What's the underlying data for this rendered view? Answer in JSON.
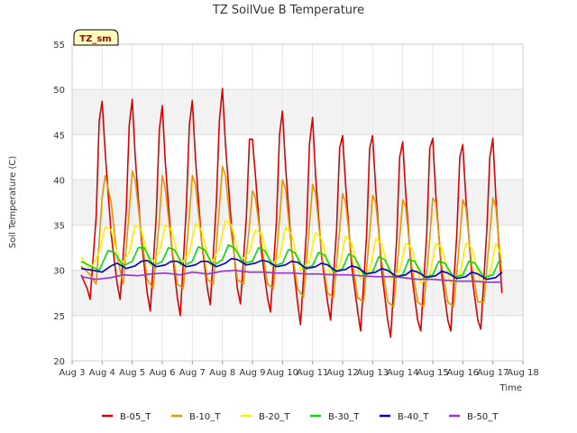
{
  "chart_data": {
    "type": "line",
    "title": "TZ SoilVue B Temperature",
    "xlabel": "Time",
    "ylabel": "Soil Temperature (C)",
    "ylim": [
      20,
      55
    ],
    "xlim": [
      3,
      18
    ],
    "yticks": [
      20,
      25,
      30,
      35,
      40,
      45,
      50,
      55
    ],
    "xticks": [
      3,
      4,
      5,
      6,
      7,
      8,
      9,
      10,
      11,
      12,
      13,
      14,
      15,
      16,
      17,
      18
    ],
    "xtick_labels": [
      "Aug 3",
      "Aug 4",
      "Aug 5",
      "Aug 6",
      "Aug 7",
      "Aug 8",
      "Aug 9",
      "Aug 10",
      "Aug 11",
      "Aug 12",
      "Aug 13",
      "Aug 14",
      "Aug 15",
      "Aug 16",
      "Aug 17",
      "Aug 18"
    ],
    "grid": true,
    "legend_position": "bottom",
    "annotation": "TZ_sm",
    "series": [
      {
        "name": "B-05_T",
        "color": "#dd0000",
        "x": [
          3.3,
          3.5,
          3.6,
          3.8,
          3.9,
          4.0,
          4.1,
          4.3,
          4.5,
          4.6,
          4.8,
          4.9,
          5.0,
          5.1,
          5.3,
          5.5,
          5.6,
          5.8,
          5.9,
          6.0,
          6.1,
          6.3,
          6.5,
          6.6,
          6.8,
          6.9,
          7.0,
          7.1,
          7.3,
          7.5,
          7.6,
          7.8,
          7.9,
          8.0,
          8.1,
          8.3,
          8.5,
          8.6,
          8.8,
          8.9,
          9.0,
          9.1,
          9.3,
          9.5,
          9.6,
          9.8,
          9.9,
          10.0,
          10.1,
          10.3,
          10.5,
          10.6,
          10.8,
          10.9,
          11.0,
          11.1,
          11.3,
          11.5,
          11.6,
          11.8,
          11.9,
          12.0,
          12.1,
          12.3,
          12.5,
          12.6,
          12.8,
          12.9,
          13.0,
          13.1,
          13.3,
          13.5,
          13.6,
          13.8,
          13.9,
          14.0,
          14.1,
          14.3,
          14.5,
          14.6,
          14.8,
          14.9,
          15.0,
          15.1,
          15.3,
          15.5,
          15.6,
          15.8,
          15.9,
          16.0,
          16.1,
          16.3,
          16.5,
          16.6,
          16.8,
          16.9,
          17.0,
          17.1,
          17.3
        ],
        "values": [
          29.5,
          28.0,
          26.8,
          36.0,
          46.5,
          48.7,
          43.0,
          34.0,
          28.5,
          26.8,
          36.5,
          46.0,
          48.9,
          42.5,
          33.5,
          27.5,
          25.5,
          36.0,
          45.5,
          48.2,
          42.0,
          33.0,
          27.0,
          25.0,
          37.0,
          46.0,
          48.8,
          42.5,
          33.5,
          28.0,
          26.2,
          37.5,
          46.5,
          50.1,
          44.0,
          35.0,
          28.0,
          26.3,
          36.0,
          44.5,
          44.5,
          40.5,
          32.0,
          27.0,
          25.4,
          35.5,
          45.0,
          47.6,
          41.5,
          32.5,
          26.5,
          24.0,
          34.5,
          44.0,
          46.9,
          40.5,
          31.5,
          26.5,
          24.5,
          34.5,
          43.5,
          44.9,
          39.5,
          30.5,
          25.5,
          23.3,
          34.0,
          43.5,
          44.9,
          39.0,
          30.0,
          24.5,
          22.6,
          33.5,
          42.5,
          44.2,
          38.5,
          29.5,
          24.5,
          23.3,
          34.0,
          43.5,
          44.6,
          38.5,
          29.5,
          24.5,
          23.3,
          34.0,
          42.5,
          43.9,
          38.0,
          29.5,
          24.5,
          23.5,
          34.5,
          42.5,
          44.6,
          38.0,
          27.5
        ]
      },
      {
        "name": "B-10_T",
        "color": "#e69500",
        "x": [
          3.3,
          3.6,
          3.8,
          4.0,
          4.1,
          4.3,
          4.5,
          4.7,
          4.9,
          5.0,
          5.1,
          5.3,
          5.5,
          5.7,
          5.9,
          6.0,
          6.1,
          6.3,
          6.5,
          6.7,
          6.9,
          7.0,
          7.1,
          7.3,
          7.5,
          7.7,
          7.9,
          8.0,
          8.1,
          8.3,
          8.5,
          8.7,
          8.9,
          9.0,
          9.1,
          9.3,
          9.5,
          9.7,
          9.9,
          10.0,
          10.1,
          10.3,
          10.5,
          10.7,
          10.9,
          11.0,
          11.1,
          11.3,
          11.5,
          11.7,
          11.9,
          12.0,
          12.1,
          12.3,
          12.5,
          12.7,
          12.9,
          13.0,
          13.1,
          13.3,
          13.5,
          13.7,
          13.9,
          14.0,
          14.1,
          14.3,
          14.5,
          14.7,
          14.9,
          15.0,
          15.1,
          15.3,
          15.5,
          15.7,
          15.9,
          16.0,
          16.1,
          16.3,
          16.5,
          16.7,
          16.9,
          17.0,
          17.1,
          17.3
        ],
        "values": [
          30.5,
          29.5,
          28.5,
          38.0,
          40.5,
          37.5,
          31.5,
          28.5,
          36.5,
          41.0,
          40.0,
          34.0,
          29.0,
          28.0,
          35.5,
          40.5,
          39.0,
          33.0,
          28.5,
          28.0,
          36.0,
          40.5,
          39.5,
          33.5,
          29.0,
          28.5,
          37.0,
          41.5,
          40.5,
          34.0,
          29.0,
          28.5,
          35.0,
          38.8,
          38.0,
          33.0,
          28.5,
          28.0,
          35.5,
          40.0,
          39.0,
          32.5,
          28.0,
          27.0,
          35.0,
          39.5,
          38.5,
          32.0,
          27.5,
          27.0,
          34.5,
          38.5,
          37.5,
          31.5,
          27.0,
          26.5,
          34.0,
          38.3,
          37.5,
          31.0,
          26.5,
          26.0,
          33.5,
          37.8,
          37.0,
          30.5,
          26.5,
          26.0,
          33.5,
          38.0,
          37.5,
          30.5,
          26.5,
          26.0,
          33.5,
          37.8,
          37.0,
          30.5,
          26.5,
          26.5,
          34.0,
          38.0,
          37.0,
          29.5
        ]
      },
      {
        "name": "B-20_T",
        "color": "#ffee00",
        "x": [
          3.3,
          3.6,
          3.9,
          4.1,
          4.3,
          4.6,
          4.9,
          5.1,
          5.3,
          5.6,
          5.9,
          6.1,
          6.3,
          6.6,
          6.9,
          7.1,
          7.3,
          7.6,
          7.9,
          8.1,
          8.3,
          8.6,
          8.9,
          9.1,
          9.3,
          9.6,
          9.9,
          10.1,
          10.3,
          10.6,
          10.9,
          11.1,
          11.3,
          11.6,
          11.9,
          12.1,
          12.3,
          12.6,
          12.9,
          13.1,
          13.3,
          13.6,
          13.9,
          14.1,
          14.3,
          14.6,
          14.9,
          15.1,
          15.3,
          15.6,
          15.9,
          16.1,
          16.3,
          16.6,
          16.9,
          17.1,
          17.3
        ],
        "values": [
          31.5,
          30.0,
          32.0,
          34.8,
          34.5,
          30.5,
          32.0,
          35.0,
          34.5,
          30.5,
          32.0,
          35.0,
          34.5,
          30.5,
          32.0,
          35.2,
          34.5,
          30.5,
          32.5,
          35.5,
          35.0,
          31.0,
          32.0,
          34.5,
          34.0,
          30.5,
          31.5,
          34.8,
          34.0,
          30.0,
          31.0,
          34.2,
          33.5,
          29.5,
          30.5,
          33.8,
          33.0,
          29.0,
          30.0,
          33.5,
          33.0,
          29.0,
          30.0,
          33.0,
          32.5,
          28.5,
          29.5,
          33.0,
          32.5,
          28.5,
          29.5,
          33.0,
          32.5,
          28.5,
          29.5,
          33.0,
          31.5
        ]
      },
      {
        "name": "B-30_T",
        "color": "#00dd00",
        "x": [
          3.3,
          3.6,
          3.9,
          4.2,
          4.4,
          4.7,
          5.0,
          5.2,
          5.4,
          5.7,
          6.0,
          6.2,
          6.4,
          6.7,
          7.0,
          7.2,
          7.4,
          7.7,
          8.0,
          8.2,
          8.4,
          8.7,
          9.0,
          9.2,
          9.4,
          9.7,
          10.0,
          10.2,
          10.4,
          10.7,
          11.0,
          11.2,
          11.4,
          11.7,
          12.0,
          12.2,
          12.4,
          12.7,
          13.0,
          13.2,
          13.4,
          13.7,
          14.0,
          14.2,
          14.4,
          14.7,
          15.0,
          15.2,
          15.4,
          15.7,
          16.0,
          16.2,
          16.4,
          16.7,
          17.0,
          17.2,
          17.3
        ],
        "values": [
          31.0,
          30.5,
          30.0,
          32.2,
          32.0,
          30.5,
          31.0,
          32.5,
          32.5,
          30.5,
          31.0,
          32.5,
          32.3,
          30.5,
          31.0,
          32.6,
          32.3,
          30.5,
          31.2,
          32.8,
          32.5,
          30.8,
          31.0,
          32.5,
          32.2,
          30.5,
          30.8,
          32.3,
          32.0,
          30.2,
          30.5,
          32.0,
          31.7,
          29.8,
          30.2,
          31.8,
          31.5,
          29.5,
          29.8,
          31.5,
          31.2,
          29.2,
          29.5,
          31.2,
          31.0,
          29.2,
          29.5,
          31.0,
          30.8,
          29.2,
          29.5,
          31.0,
          30.8,
          29.2,
          29.5,
          31.0,
          31.0
        ]
      },
      {
        "name": "B-40_T",
        "color": "#0000cc",
        "x": [
          3.3,
          3.7,
          4.0,
          4.3,
          4.5,
          4.8,
          5.1,
          5.3,
          5.5,
          5.8,
          6.1,
          6.3,
          6.5,
          6.8,
          7.1,
          7.3,
          7.5,
          7.8,
          8.1,
          8.3,
          8.5,
          8.8,
          9.1,
          9.3,
          9.5,
          9.8,
          10.1,
          10.3,
          10.5,
          10.8,
          11.1,
          11.3,
          11.5,
          11.8,
          12.1,
          12.3,
          12.5,
          12.8,
          13.1,
          13.3,
          13.5,
          13.8,
          14.1,
          14.3,
          14.5,
          14.8,
          15.1,
          15.3,
          15.5,
          15.8,
          16.1,
          16.3,
          16.5,
          16.8,
          17.1,
          17.3
        ],
        "values": [
          30.2,
          30.0,
          29.8,
          30.5,
          30.8,
          30.2,
          30.5,
          31.0,
          31.1,
          30.4,
          30.6,
          31.0,
          31.0,
          30.4,
          30.6,
          31.0,
          31.0,
          30.4,
          30.8,
          31.3,
          31.2,
          30.6,
          30.8,
          31.1,
          31.0,
          30.4,
          30.6,
          31.0,
          30.9,
          30.2,
          30.4,
          30.8,
          30.6,
          29.9,
          30.1,
          30.5,
          30.3,
          29.6,
          29.8,
          30.2,
          30.0,
          29.3,
          29.5,
          30.0,
          29.8,
          29.2,
          29.4,
          29.9,
          29.7,
          29.1,
          29.3,
          29.8,
          29.6,
          29.0,
          29.2,
          29.8
        ]
      },
      {
        "name": "B-50_T",
        "color": "#9933cc",
        "x": [
          3.3,
          3.8,
          4.3,
          4.7,
          5.2,
          5.6,
          6.1,
          6.6,
          7.0,
          7.5,
          8.0,
          8.4,
          8.9,
          9.4,
          9.8,
          10.3,
          10.8,
          11.2,
          11.7,
          12.2,
          12.6,
          13.1,
          13.6,
          14.0,
          14.5,
          15.0,
          15.4,
          15.9,
          16.4,
          16.8,
          17.3
        ],
        "values": [
          29.3,
          29.0,
          29.2,
          29.5,
          29.4,
          29.6,
          29.7,
          29.5,
          29.8,
          29.6,
          29.9,
          30.0,
          29.8,
          29.8,
          29.7,
          29.7,
          29.6,
          29.6,
          29.5,
          29.5,
          29.4,
          29.3,
          29.3,
          29.2,
          29.0,
          29.0,
          28.9,
          28.8,
          28.8,
          28.7,
          28.7
        ]
      }
    ]
  }
}
